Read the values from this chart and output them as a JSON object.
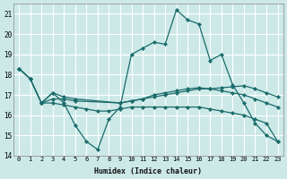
{
  "xlabel": "Humidex (Indice chaleur)",
  "bg_color": "#cce9e7",
  "grid_color": "#ffffff",
  "line_color": "#1a6b6b",
  "xlim": [
    -0.5,
    23.5
  ],
  "ylim": [
    14,
    21.5
  ],
  "yticks": [
    14,
    15,
    16,
    17,
    18,
    19,
    20,
    21
  ],
  "xticks": [
    0,
    1,
    2,
    3,
    4,
    5,
    6,
    7,
    8,
    9,
    10,
    11,
    12,
    13,
    14,
    15,
    16,
    17,
    18,
    19,
    20,
    21,
    22,
    23
  ],
  "series": [
    {
      "x": [
        0,
        1,
        2,
        3,
        4,
        5,
        6,
        7,
        8,
        9,
        10,
        11,
        12,
        13,
        14,
        15,
        16,
        17,
        18,
        19,
        20,
        21,
        22,
        23
      ],
      "y": [
        18.3,
        17.8,
        16.6,
        17.1,
        16.6,
        15.5,
        14.7,
        14.3,
        15.8,
        16.4,
        19.0,
        19.3,
        19.6,
        19.5,
        21.2,
        20.7,
        20.5,
        18.7,
        19.0,
        17.5,
        16.6,
        15.6,
        15.0,
        14.7
      ]
    },
    {
      "x": [
        0,
        1,
        2,
        3,
        4,
        5,
        9,
        10,
        11,
        12,
        13,
        14,
        15,
        16,
        17,
        18,
        19,
        20,
        21,
        22,
        23
      ],
      "y": [
        18.3,
        17.8,
        16.6,
        16.8,
        16.8,
        16.7,
        16.6,
        16.7,
        16.8,
        16.9,
        17.0,
        17.1,
        17.2,
        17.3,
        17.3,
        17.35,
        17.4,
        17.45,
        17.3,
        17.1,
        16.9
      ]
    },
    {
      "x": [
        0,
        1,
        2,
        3,
        4,
        5,
        9,
        10,
        11,
        12,
        13,
        14,
        15,
        16,
        17,
        18,
        19,
        20,
        21,
        22,
        23
      ],
      "y": [
        18.3,
        17.8,
        16.6,
        17.1,
        16.9,
        16.8,
        16.6,
        16.7,
        16.8,
        17.0,
        17.1,
        17.2,
        17.3,
        17.35,
        17.3,
        17.2,
        17.1,
        17.0,
        16.8,
        16.6,
        16.4
      ]
    },
    {
      "x": [
        2,
        3,
        4,
        5,
        6,
        7,
        8,
        9,
        10,
        11,
        12,
        13,
        14,
        15,
        16,
        17,
        18,
        19,
        20,
        21,
        22,
        23
      ],
      "y": [
        16.6,
        16.6,
        16.5,
        16.4,
        16.3,
        16.2,
        16.2,
        16.3,
        16.4,
        16.4,
        16.4,
        16.4,
        16.4,
        16.4,
        16.4,
        16.3,
        16.2,
        16.1,
        16.0,
        15.8,
        15.6,
        14.7
      ]
    }
  ]
}
